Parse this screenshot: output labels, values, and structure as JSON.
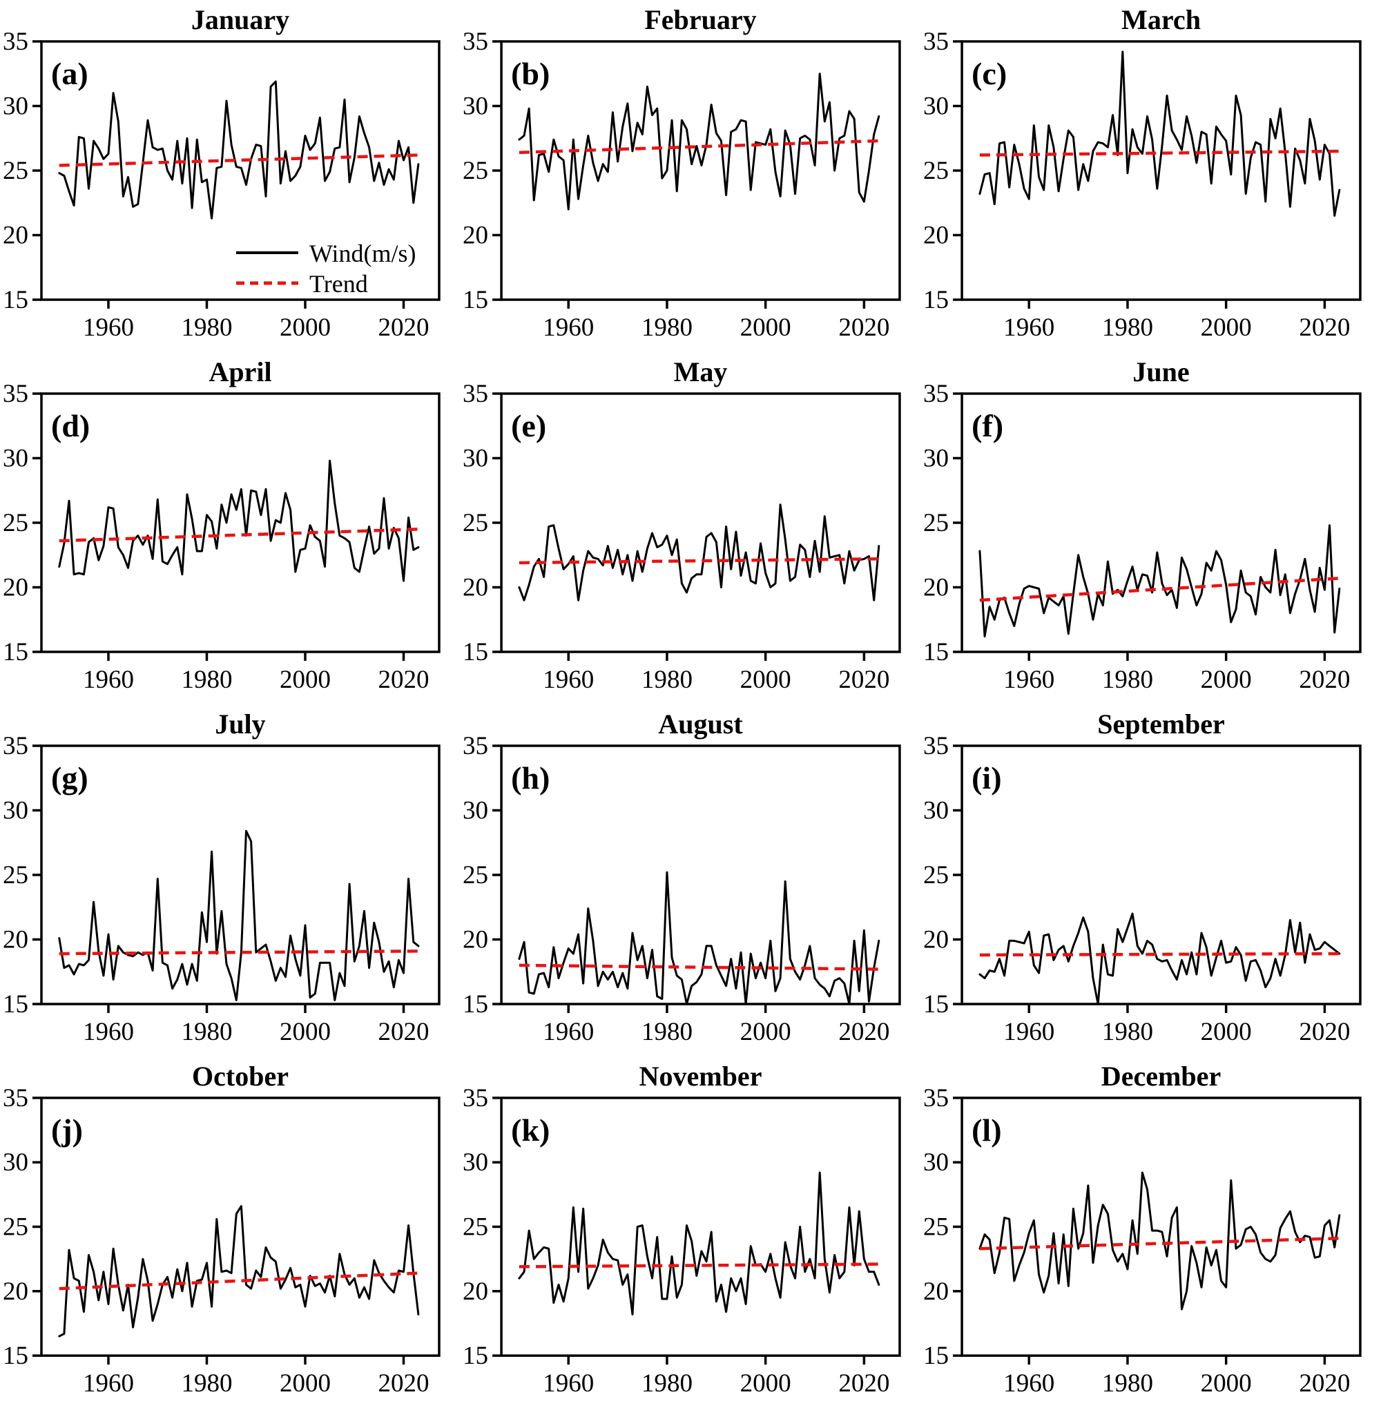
{
  "figure": {
    "background": "#ffffff",
    "line_color": "#000000",
    "trend_color": "#e81414",
    "rows": 4,
    "cols": 3
  },
  "legend": {
    "wind_label": "Wind(m/s)",
    "trend_label": "Trend",
    "position": "lower right of panel (a)"
  },
  "axes": {
    "ylim": [
      15,
      35
    ],
    "y_ticks": [
      35,
      30,
      25,
      20,
      15
    ],
    "x_ticks": [
      1960,
      1980,
      2000,
      2020
    ],
    "start_year": 1950,
    "end_year": 2023,
    "grid": "off"
  },
  "chart_data": [
    {
      "type": "line",
      "letter": "(a)",
      "title": "January",
      "legend": true,
      "trend": [
        25.4,
        26.2
      ],
      "values": [
        24.8,
        24.6,
        23.4,
        22.3,
        27.6,
        27.5,
        23.6,
        27.3,
        26.7,
        25.9,
        26.3,
        31.0,
        28.8,
        23.0,
        24.5,
        22.2,
        22.4,
        25.6,
        28.9,
        26.8,
        26.6,
        26.7,
        25.0,
        24.3,
        27.3,
        24.0,
        27.5,
        22.1,
        27.4,
        24.1,
        24.3,
        21.3,
        25.2,
        25.3,
        30.4,
        27.0,
        25.3,
        25.2,
        23.9,
        25.9,
        27.0,
        26.9,
        23.0,
        31.5,
        31.9,
        24.0,
        26.5,
        24.2,
        24.6,
        25.3,
        27.7,
        26.6,
        27.1,
        29.1,
        24.2,
        24.9,
        26.7,
        26.8,
        30.5,
        24.1,
        26.0,
        29.2,
        27.9,
        26.8,
        24.2,
        25.6,
        23.9,
        25.1,
        24.3,
        27.3,
        25.8,
        26.8,
        22.5,
        25.5
      ]
    },
    {
      "type": "line",
      "letter": "(b)",
      "title": "February",
      "legend": false,
      "trend": [
        26.4,
        27.3
      ],
      "values": [
        27.4,
        27.7,
        29.8,
        22.7,
        26.2,
        26.3,
        24.9,
        27.4,
        26.1,
        25.8,
        22.0,
        27.4,
        22.8,
        25.4,
        27.7,
        25.6,
        24.2,
        25.5,
        24.9,
        29.5,
        25.7,
        28.4,
        30.2,
        26.5,
        28.7,
        27.8,
        31.5,
        29.3,
        29.8,
        24.4,
        25.0,
        28.9,
        23.4,
        28.9,
        28.2,
        25.5,
        26.9,
        25.4,
        27.0,
        30.1,
        27.9,
        27.3,
        23.1,
        28.0,
        28.2,
        28.9,
        28.8,
        23.5,
        27.2,
        27.1,
        27.0,
        28.2,
        24.9,
        23.0,
        28.1,
        27.0,
        23.2,
        27.5,
        27.7,
        27.4,
        25.4,
        32.5,
        28.8,
        30.3,
        25.0,
        27.5,
        27.7,
        29.6,
        29.0,
        23.3,
        22.6,
        25.0,
        27.8,
        29.2
      ]
    },
    {
      "type": "line",
      "letter": "(c)",
      "title": "March",
      "legend": false,
      "trend": [
        26.2,
        26.5
      ],
      "values": [
        23.2,
        24.7,
        24.8,
        22.4,
        27.1,
        27.2,
        23.7,
        27.0,
        25.5,
        23.6,
        22.8,
        28.5,
        24.5,
        23.5,
        28.5,
        26.8,
        23.4,
        25.9,
        28.1,
        27.6,
        23.5,
        25.5,
        24.2,
        26.5,
        27.2,
        27.1,
        26.8,
        29.3,
        26.2,
        34.2,
        24.8,
        28.2,
        26.8,
        26.3,
        29.2,
        27.4,
        23.6,
        26.9,
        30.8,
        28.1,
        27.4,
        26.6,
        29.2,
        27.7,
        25.6,
        28.0,
        27.8,
        24.0,
        28.4,
        27.8,
        27.3,
        24.7,
        30.8,
        29.3,
        23.2,
        26.0,
        27.2,
        27.0,
        22.6,
        29.0,
        27.5,
        29.8,
        26.4,
        22.2,
        26.7,
        25.8,
        24.0,
        29.0,
        27.3,
        24.3,
        27.0,
        26.3,
        21.5,
        23.5
      ]
    },
    {
      "type": "line",
      "letter": "(d)",
      "title": "April",
      "legend": false,
      "trend": [
        23.6,
        24.5
      ],
      "values": [
        21.6,
        23.4,
        26.7,
        21.0,
        21.1,
        21.0,
        23.5,
        23.8,
        22.1,
        23.2,
        26.2,
        26.1,
        23.1,
        22.5,
        21.5,
        23.6,
        24.0,
        23.3,
        24.0,
        22.2,
        26.8,
        22.0,
        21.8,
        22.5,
        23.1,
        21.0,
        27.2,
        25.3,
        22.8,
        22.8,
        25.6,
        25.1,
        23.0,
        26.4,
        25.0,
        27.2,
        26.0,
        27.6,
        24.0,
        27.5,
        27.4,
        25.6,
        27.6,
        23.6,
        25.2,
        25.0,
        27.3,
        26.0,
        21.2,
        22.9,
        23.0,
        24.8,
        23.9,
        23.6,
        21.6,
        29.8,
        26.5,
        24.0,
        23.8,
        23.5,
        21.5,
        21.2,
        23.0,
        24.7,
        22.6,
        23.0,
        26.9,
        23.0,
        24.6,
        23.8,
        20.5,
        25.4,
        22.9,
        23.1
      ]
    },
    {
      "type": "line",
      "letter": "(e)",
      "title": "May",
      "legend": false,
      "trend": [
        21.9,
        22.2
      ],
      "values": [
        20.0,
        19.0,
        20.2,
        21.6,
        22.2,
        20.8,
        24.7,
        24.8,
        23.0,
        21.4,
        21.8,
        22.4,
        19.0,
        21.3,
        22.8,
        22.3,
        22.2,
        21.7,
        23.2,
        21.5,
        22.9,
        21.0,
        22.5,
        20.5,
        22.8,
        21.2,
        23.0,
        24.2,
        23.1,
        23.3,
        24.0,
        22.5,
        23.7,
        20.3,
        19.6,
        20.7,
        21.0,
        21.0,
        23.9,
        24.2,
        23.5,
        20.0,
        24.7,
        21.4,
        24.3,
        20.9,
        22.7,
        20.5,
        20.3,
        23.4,
        21.1,
        20.0,
        20.3,
        26.4,
        23.7,
        20.5,
        20.8,
        23.3,
        22.9,
        20.8,
        23.6,
        21.2,
        25.5,
        22.3,
        22.4,
        22.5,
        20.3,
        22.8,
        21.3,
        22.1,
        22.2,
        22.4,
        19.0,
        23.2
      ]
    },
    {
      "type": "line",
      "letter": "(f)",
      "title": "June",
      "legend": false,
      "trend": [
        19.0,
        20.7
      ],
      "values": [
        22.8,
        16.2,
        18.5,
        17.5,
        19.0,
        19.2,
        18.0,
        17.0,
        18.7,
        19.9,
        20.1,
        20.0,
        19.9,
        18.0,
        19.2,
        18.9,
        18.6,
        19.3,
        16.4,
        19.5,
        22.5,
        20.8,
        19.5,
        17.5,
        19.5,
        18.6,
        22.0,
        19.5,
        19.8,
        19.3,
        20.5,
        21.6,
        19.8,
        21.0,
        20.9,
        19.6,
        22.7,
        20.3,
        19.4,
        19.8,
        18.4,
        22.3,
        21.4,
        20.0,
        18.6,
        19.5,
        21.9,
        21.3,
        22.8,
        22.1,
        20.2,
        17.3,
        18.3,
        21.3,
        19.6,
        19.3,
        17.9,
        20.8,
        20.0,
        19.6,
        22.9,
        19.4,
        21.0,
        18.0,
        19.5,
        20.6,
        22.2,
        19.8,
        18.1,
        21.5,
        19.8,
        24.8,
        16.5,
        19.9
      ]
    },
    {
      "type": "line",
      "letter": "(g)",
      "title": "July",
      "legend": false,
      "trend": [
        18.9,
        19.1
      ],
      "values": [
        20.1,
        17.8,
        18.0,
        17.3,
        18.1,
        18.0,
        18.4,
        22.9,
        19.1,
        17.2,
        20.4,
        16.9,
        19.5,
        19.0,
        18.8,
        18.7,
        19.0,
        18.8,
        19.0,
        17.6,
        24.7,
        18.2,
        18.0,
        16.2,
        16.9,
        18.1,
        16.5,
        18.1,
        16.8,
        22.1,
        19.8,
        26.8,
        18.9,
        22.2,
        18.1,
        17.0,
        15.3,
        19.0,
        28.4,
        27.6,
        19.0,
        19.3,
        19.6,
        18.3,
        16.8,
        17.8,
        17.1,
        20.3,
        18.5,
        17.2,
        21.1,
        15.5,
        15.8,
        18.2,
        18.2,
        18.2,
        15.3,
        17.4,
        16.4,
        24.3,
        18.3,
        19.5,
        22.2,
        17.8,
        21.3,
        19.8,
        17.5,
        18.3,
        16.3,
        18.4,
        17.4,
        24.7,
        19.8,
        19.5
      ]
    },
    {
      "type": "line",
      "letter": "(h)",
      "title": "August",
      "legend": false,
      "trend": [
        18.0,
        17.7
      ],
      "values": [
        18.5,
        19.8,
        15.9,
        15.8,
        17.3,
        17.4,
        16.3,
        19.4,
        17.0,
        18.2,
        19.3,
        18.9,
        20.4,
        16.6,
        22.4,
        19.9,
        16.4,
        17.5,
        16.9,
        17.5,
        16.3,
        17.4,
        16.2,
        20.5,
        18.4,
        19.5,
        17.0,
        19.2,
        15.6,
        15.4,
        25.2,
        18.6,
        17.2,
        16.9,
        15.0,
        16.4,
        16.7,
        17.3,
        19.5,
        19.5,
        18.0,
        17.2,
        16.4,
        18.5,
        16.2,
        19.0,
        15.0,
        18.9,
        17.0,
        18.2,
        17.0,
        19.9,
        16.0,
        17.0,
        24.5,
        18.5,
        17.5,
        16.9,
        18.0,
        19.5,
        17.0,
        16.5,
        16.2,
        15.6,
        16.8,
        17.0,
        16.6,
        15.0,
        19.9,
        16.0,
        20.7,
        15.2,
        17.8,
        19.9
      ]
    },
    {
      "type": "line",
      "letter": "(i)",
      "title": "September",
      "legend": false,
      "trend": [
        18.8,
        18.9
      ],
      "values": [
        17.3,
        17.0,
        17.6,
        17.5,
        18.5,
        17.2,
        19.9,
        19.9,
        19.8,
        19.7,
        20.6,
        18.0,
        17.4,
        20.3,
        20.4,
        18.4,
        19.2,
        19.5,
        18.3,
        19.5,
        20.5,
        21.7,
        20.6,
        17.0,
        15.0,
        19.6,
        17.3,
        17.2,
        20.8,
        19.8,
        20.9,
        22.0,
        19.5,
        18.9,
        19.9,
        19.6,
        18.5,
        18.3,
        18.4,
        17.6,
        16.9,
        18.4,
        17.3,
        19.0,
        17.3,
        20.5,
        19.4,
        17.2,
        18.6,
        19.9,
        18.2,
        18.3,
        19.4,
        18.8,
        16.8,
        18.3,
        18.4,
        17.6,
        16.3,
        17.0,
        18.5,
        17.2,
        18.8,
        21.5,
        19.0,
        21.3,
        18.2,
        20.4,
        19.2,
        19.3,
        19.8,
        19.5,
        19.2,
        18.9
      ]
    },
    {
      "type": "line",
      "letter": "(j)",
      "title": "October",
      "legend": false,
      "trend": [
        20.2,
        21.4
      ],
      "values": [
        16.5,
        16.7,
        23.2,
        21.0,
        20.8,
        18.4,
        22.8,
        21.5,
        19.3,
        21.5,
        19.0,
        23.3,
        20.5,
        18.5,
        20.5,
        17.2,
        19.5,
        22.5,
        20.8,
        17.7,
        19.0,
        20.5,
        21.1,
        19.5,
        21.7,
        20.0,
        22.2,
        18.8,
        20.8,
        20.9,
        22.2,
        18.8,
        25.6,
        21.5,
        21.6,
        21.4,
        26.0,
        26.6,
        20.5,
        20.2,
        21.6,
        21.1,
        23.4,
        22.6,
        22.3,
        20.2,
        20.9,
        21.8,
        20.3,
        20.5,
        18.8,
        21.2,
        20.4,
        20.6,
        19.9,
        21.2,
        19.6,
        22.9,
        21.3,
        20.5,
        21.0,
        19.5,
        20.3,
        19.4,
        22.4,
        21.4,
        20.8,
        20.3,
        19.9,
        21.6,
        21.5,
        25.1,
        21.4,
        18.2
      ]
    },
    {
      "type": "line",
      "letter": "(k)",
      "title": "November",
      "legend": false,
      "trend": [
        21.9,
        22.1
      ],
      "values": [
        21.0,
        21.5,
        24.7,
        22.5,
        23.0,
        23.4,
        23.3,
        19.1,
        20.5,
        19.2,
        21.0,
        26.5,
        21.5,
        26.4,
        20.2,
        21.0,
        22.0,
        24.0,
        23.0,
        22.5,
        22.4,
        20.5,
        21.3,
        18.2,
        25.0,
        25.1,
        22.7,
        21.0,
        24.2,
        19.4,
        19.4,
        22.7,
        19.5,
        20.5,
        25.1,
        23.9,
        21.2,
        23.1,
        22.3,
        24.6,
        19.2,
        20.5,
        18.4,
        21.0,
        20.0,
        21.0,
        19.0,
        23.5,
        22.0,
        22.1,
        21.5,
        22.9,
        21.0,
        19.5,
        23.8,
        22.0,
        21.0,
        25.0,
        21.5,
        22.5,
        21.0,
        29.2,
        22.5,
        19.9,
        22.8,
        21.0,
        21.5,
        26.5,
        22.0,
        26.2,
        22.5,
        21.5,
        21.5,
        20.5
      ]
    },
    {
      "type": "line",
      "letter": "(l)",
      "title": "December",
      "legend": false,
      "trend": [
        23.3,
        24.1
      ],
      "values": [
        23.3,
        24.4,
        24.0,
        21.4,
        23.0,
        25.7,
        25.6,
        20.8,
        22.0,
        23.0,
        24.5,
        25.5,
        21.3,
        19.9,
        21.2,
        24.5,
        20.6,
        24.4,
        20.4,
        26.4,
        23.3,
        24.5,
        28.2,
        22.2,
        25.1,
        26.7,
        26.0,
        23.2,
        22.3,
        22.9,
        21.7,
        25.5,
        22.9,
        29.2,
        27.9,
        24.7,
        24.7,
        24.6,
        22.7,
        25.7,
        26.5,
        18.6,
        20.0,
        23.5,
        22.2,
        20.3,
        23.4,
        22.0,
        23.2,
        20.8,
        20.3,
        28.6,
        23.3,
        23.6,
        24.8,
        25.0,
        24.4,
        23.0,
        22.5,
        22.3,
        22.8,
        24.9,
        25.6,
        26.2,
        24.6,
        23.8,
        24.3,
        24.2,
        22.6,
        22.7,
        25.1,
        25.5,
        23.4,
        25.9
      ]
    }
  ]
}
